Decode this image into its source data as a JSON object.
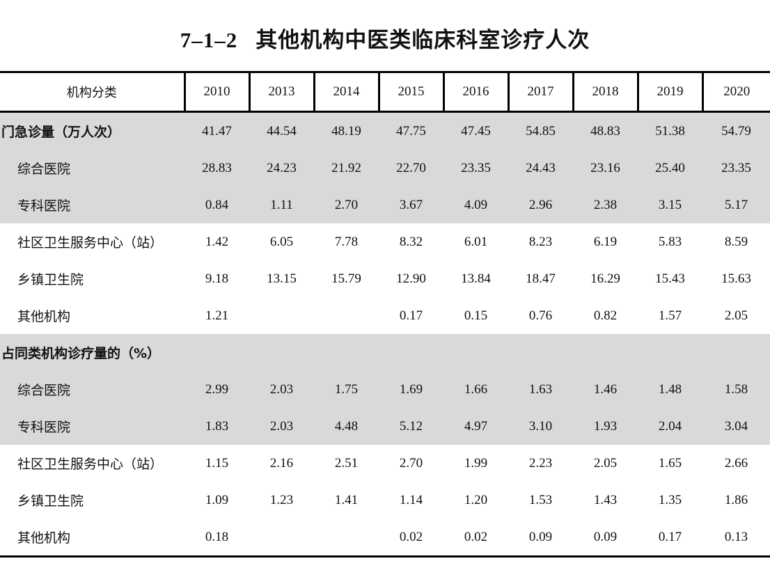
{
  "title": {
    "number": "7–1–2",
    "text": "其他机构中医类临床科室诊疗人次"
  },
  "table": {
    "header": [
      "机构分类",
      "2010",
      "2013",
      "2014",
      "2015",
      "2016",
      "2017",
      "2018",
      "2019",
      "2020"
    ],
    "rows": [
      {
        "label": "门急诊量（万人次）",
        "values": [
          "41.47",
          "44.54",
          "48.19",
          "47.75",
          "47.45",
          "54.85",
          "48.83",
          "51.38",
          "54.79"
        ]
      },
      {
        "label": "综合医院",
        "values": [
          "28.83",
          "24.23",
          "21.92",
          "22.70",
          "23.35",
          "24.43",
          "23.16",
          "25.40",
          "23.35"
        ]
      },
      {
        "label": "专科医院",
        "values": [
          "0.84",
          "1.11",
          "2.70",
          "3.67",
          "4.09",
          "2.96",
          "2.38",
          "3.15",
          "5.17"
        ]
      },
      {
        "label": "社区卫生服务中心（站）",
        "values": [
          "1.42",
          "6.05",
          "7.78",
          "8.32",
          "6.01",
          "8.23",
          "6.19",
          "5.83",
          "8.59"
        ]
      },
      {
        "label": "乡镇卫生院",
        "values": [
          "9.18",
          "13.15",
          "15.79",
          "12.90",
          "13.84",
          "18.47",
          "16.29",
          "15.43",
          "15.63"
        ]
      },
      {
        "label": "其他机构",
        "values": [
          "1.21",
          "",
          "",
          "0.17",
          "0.15",
          "0.76",
          "0.82",
          "1.57",
          "2.05"
        ]
      },
      {
        "label": "占同类机构诊疗量的（%）",
        "values": [
          "",
          "",
          "",
          "",
          "",
          "",
          "",
          "",
          ""
        ]
      },
      {
        "label": "综合医院",
        "values": [
          "2.99",
          "2.03",
          "1.75",
          "1.69",
          "1.66",
          "1.63",
          "1.46",
          "1.48",
          "1.58"
        ]
      },
      {
        "label": "专科医院",
        "values": [
          "1.83",
          "2.03",
          "4.48",
          "5.12",
          "4.97",
          "3.10",
          "1.93",
          "2.04",
          "3.04"
        ]
      },
      {
        "label": "社区卫生服务中心（站）",
        "values": [
          "1.15",
          "2.16",
          "2.51",
          "2.70",
          "1.99",
          "2.23",
          "2.05",
          "1.65",
          "2.66"
        ]
      },
      {
        "label": "乡镇卫生院",
        "values": [
          "1.09",
          "1.23",
          "1.41",
          "1.14",
          "1.20",
          "1.53",
          "1.43",
          "1.35",
          "1.86"
        ]
      },
      {
        "label": "其他机构",
        "values": [
          "0.18",
          "",
          "",
          "0.02",
          "0.02",
          "0.09",
          "0.09",
          "0.17",
          "0.13"
        ]
      }
    ]
  },
  "colors": {
    "shade": "#d9d9d9",
    "rule": "#000000"
  }
}
